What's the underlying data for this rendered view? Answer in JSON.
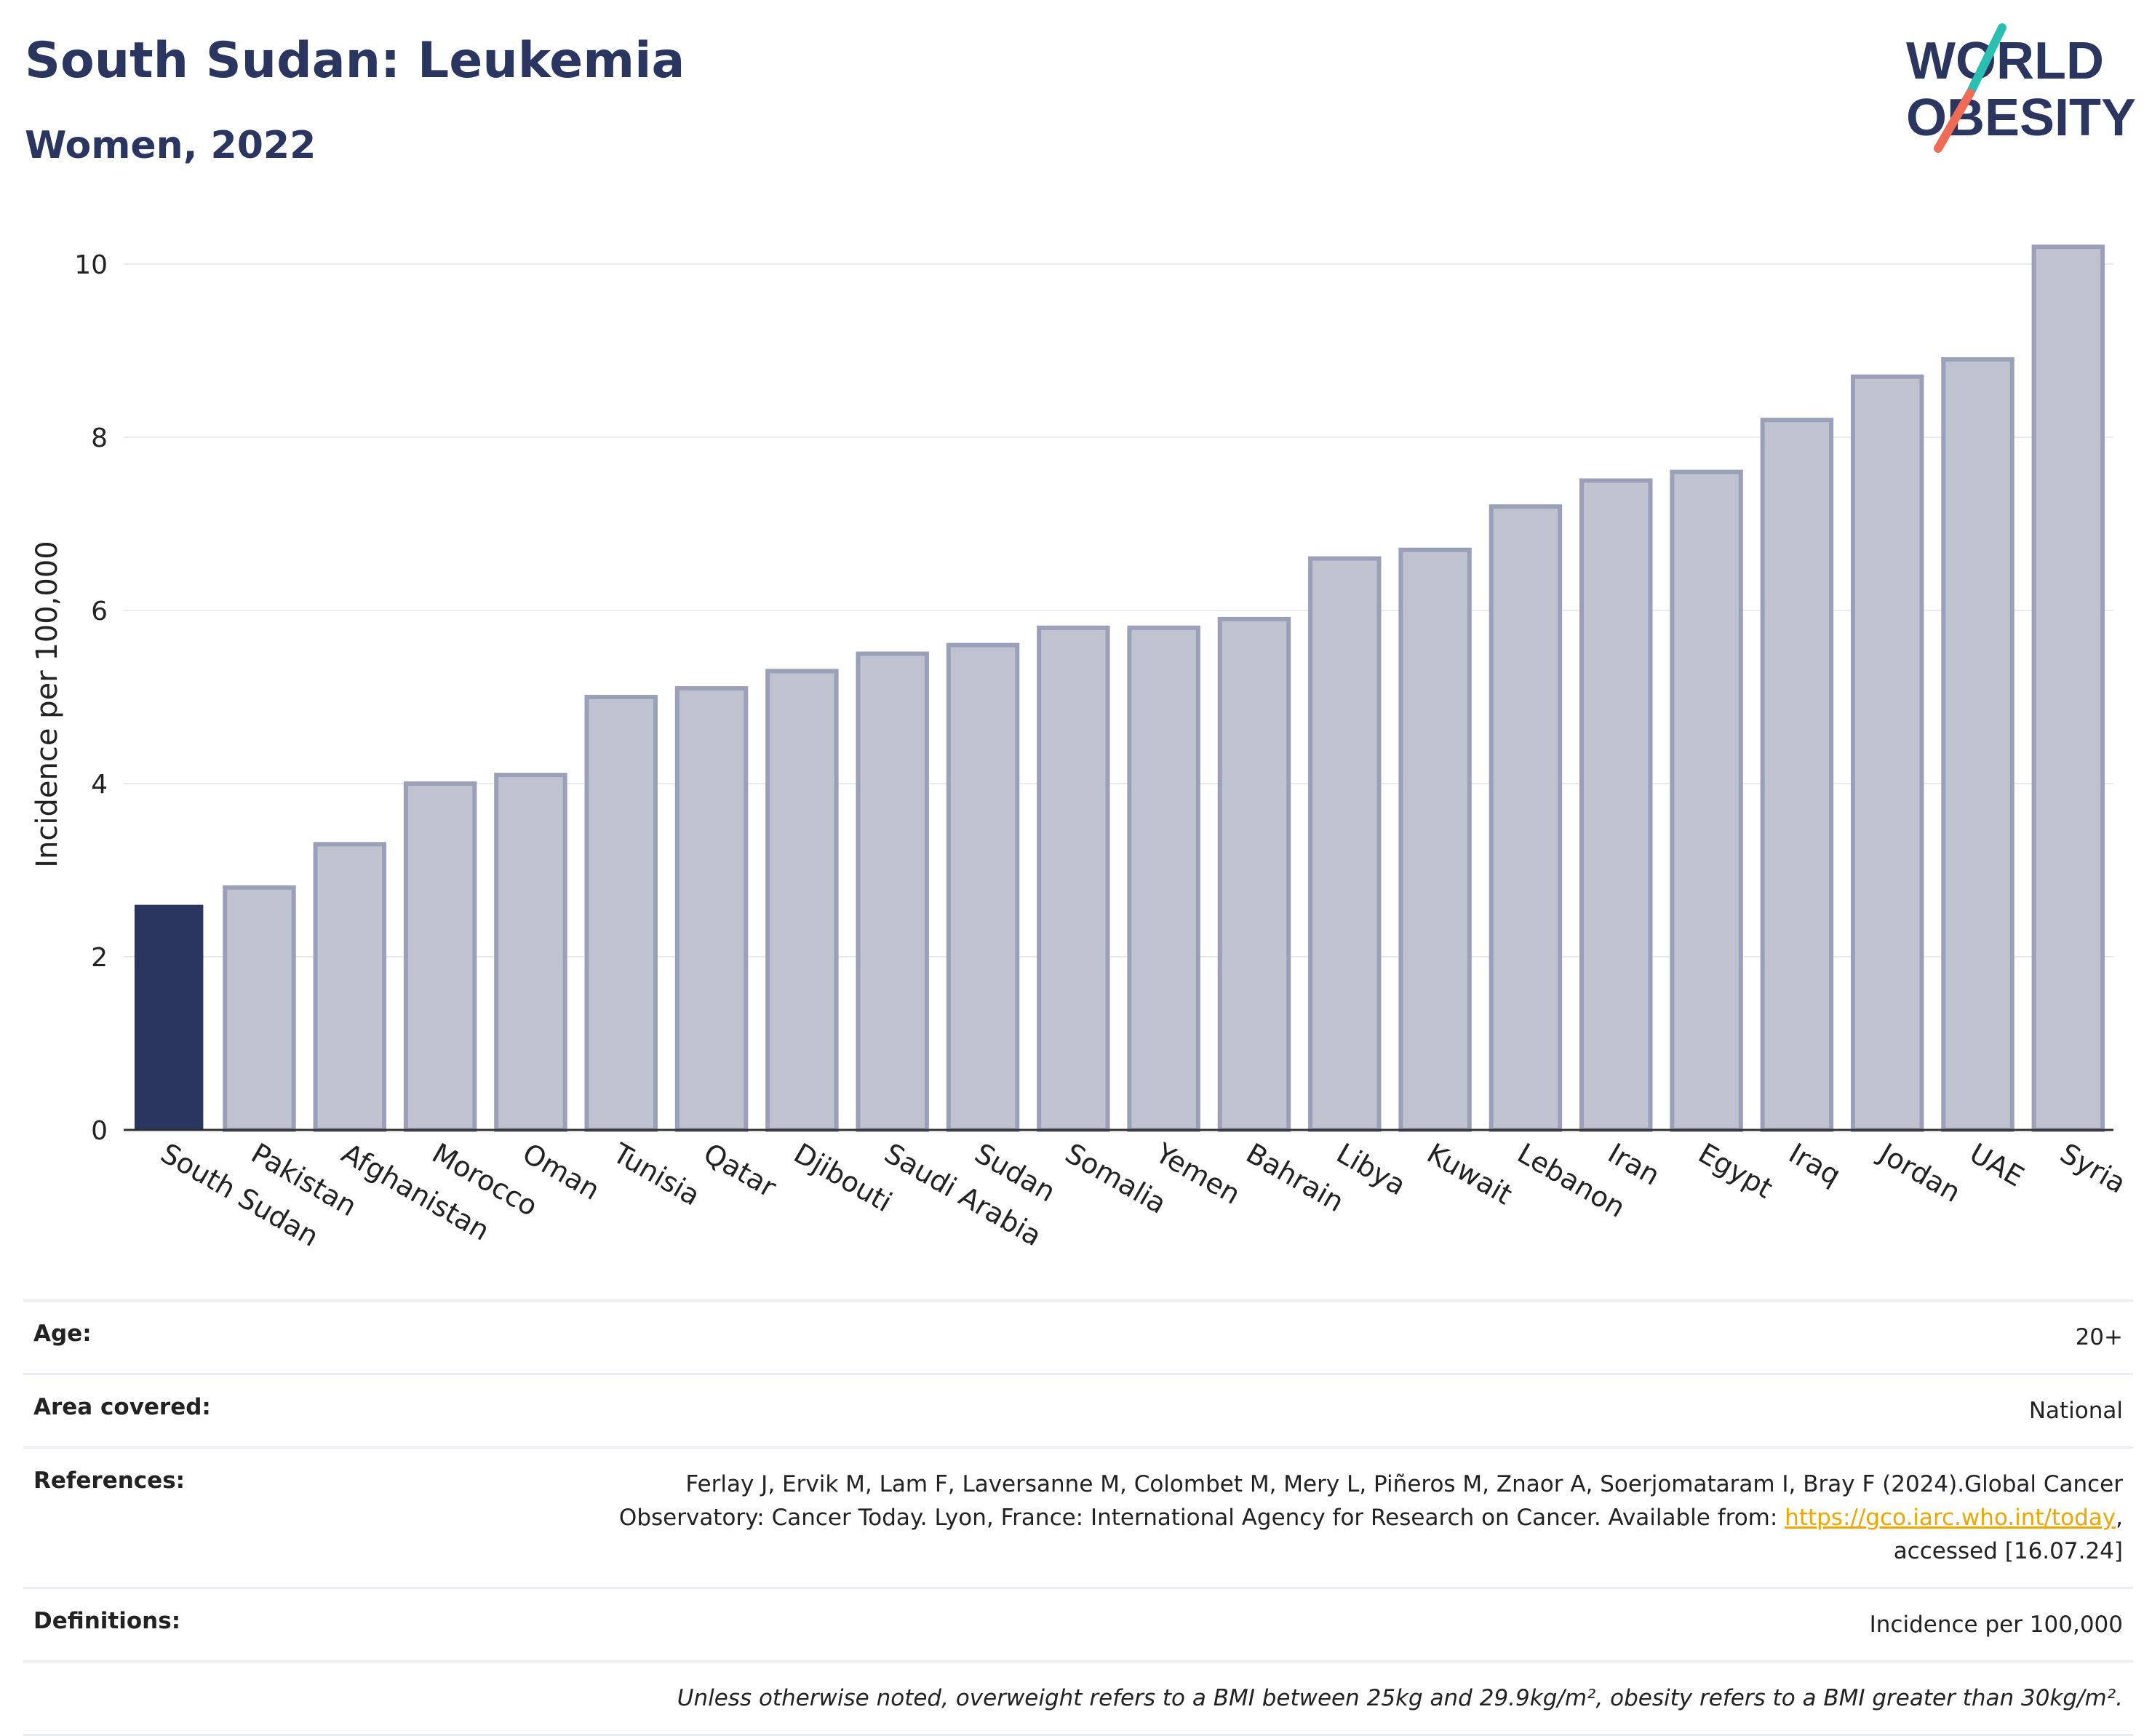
{
  "header": {
    "title": "South Sudan: Leukemia",
    "subtitle": "Women, 2022",
    "logo_line1": "WORLD",
    "logo_line2": "OBESITY"
  },
  "colors": {
    "highlight": "#2b3660",
    "bar_fill": "#bfc3d0",
    "bar_stroke": "#9aa0b8",
    "grid": "#e8eaf1",
    "logo_teal": "#2bbfb3",
    "logo_coral": "#ef6b55"
  },
  "chart_data": {
    "type": "bar",
    "ylabel": "Incidence per 100,000",
    "ylim": [
      0,
      10.5
    ],
    "yticks": [
      0,
      2,
      4,
      6,
      8,
      10
    ],
    "grid": true,
    "highlight": "South Sudan",
    "categories": [
      "South Sudan",
      "Pakistan",
      "Afghanistan",
      "Morocco",
      "Oman",
      "Tunisia",
      "Qatar",
      "Djibouti",
      "Saudi Arabia",
      "Sudan",
      "Somalia",
      "Yemen",
      "Bahrain",
      "Libya",
      "Kuwait",
      "Lebanon",
      "Iran",
      "Egypt",
      "Iraq",
      "Jordan",
      "UAE",
      "Syria"
    ],
    "values": [
      2.6,
      2.8,
      3.3,
      4.0,
      4.1,
      5.0,
      5.1,
      5.3,
      5.5,
      5.6,
      5.8,
      5.8,
      5.9,
      6.6,
      6.7,
      7.2,
      7.5,
      7.6,
      8.2,
      8.7,
      8.9,
      10.2
    ]
  },
  "info": {
    "age_label": "Age:",
    "age_value": "20+",
    "area_label": "Area covered:",
    "area_value": "National",
    "references_label": "References:",
    "references_text1": "Ferlay J, Ervik M, Lam F, Laversanne M, Colombet M, Mery L, Piñeros M, Znaor A, Soerjomataram I, Bray F (2024).Global Cancer",
    "references_text2": "Observatory: Cancer Today. Lyon, France: International Agency for Research on Cancer. Available from: ",
    "references_link": "https://gco.iarc.who.int/today",
    "references_text3": ",",
    "references_text4": "accessed [16.07.24]",
    "definitions_label": "Definitions:",
    "definitions_value": "Incidence per 100,000",
    "note": "Unless otherwise noted, overweight refers to a BMI between 25kg and 29.9kg/m², obesity refers to a BMI greater than 30kg/m²."
  }
}
